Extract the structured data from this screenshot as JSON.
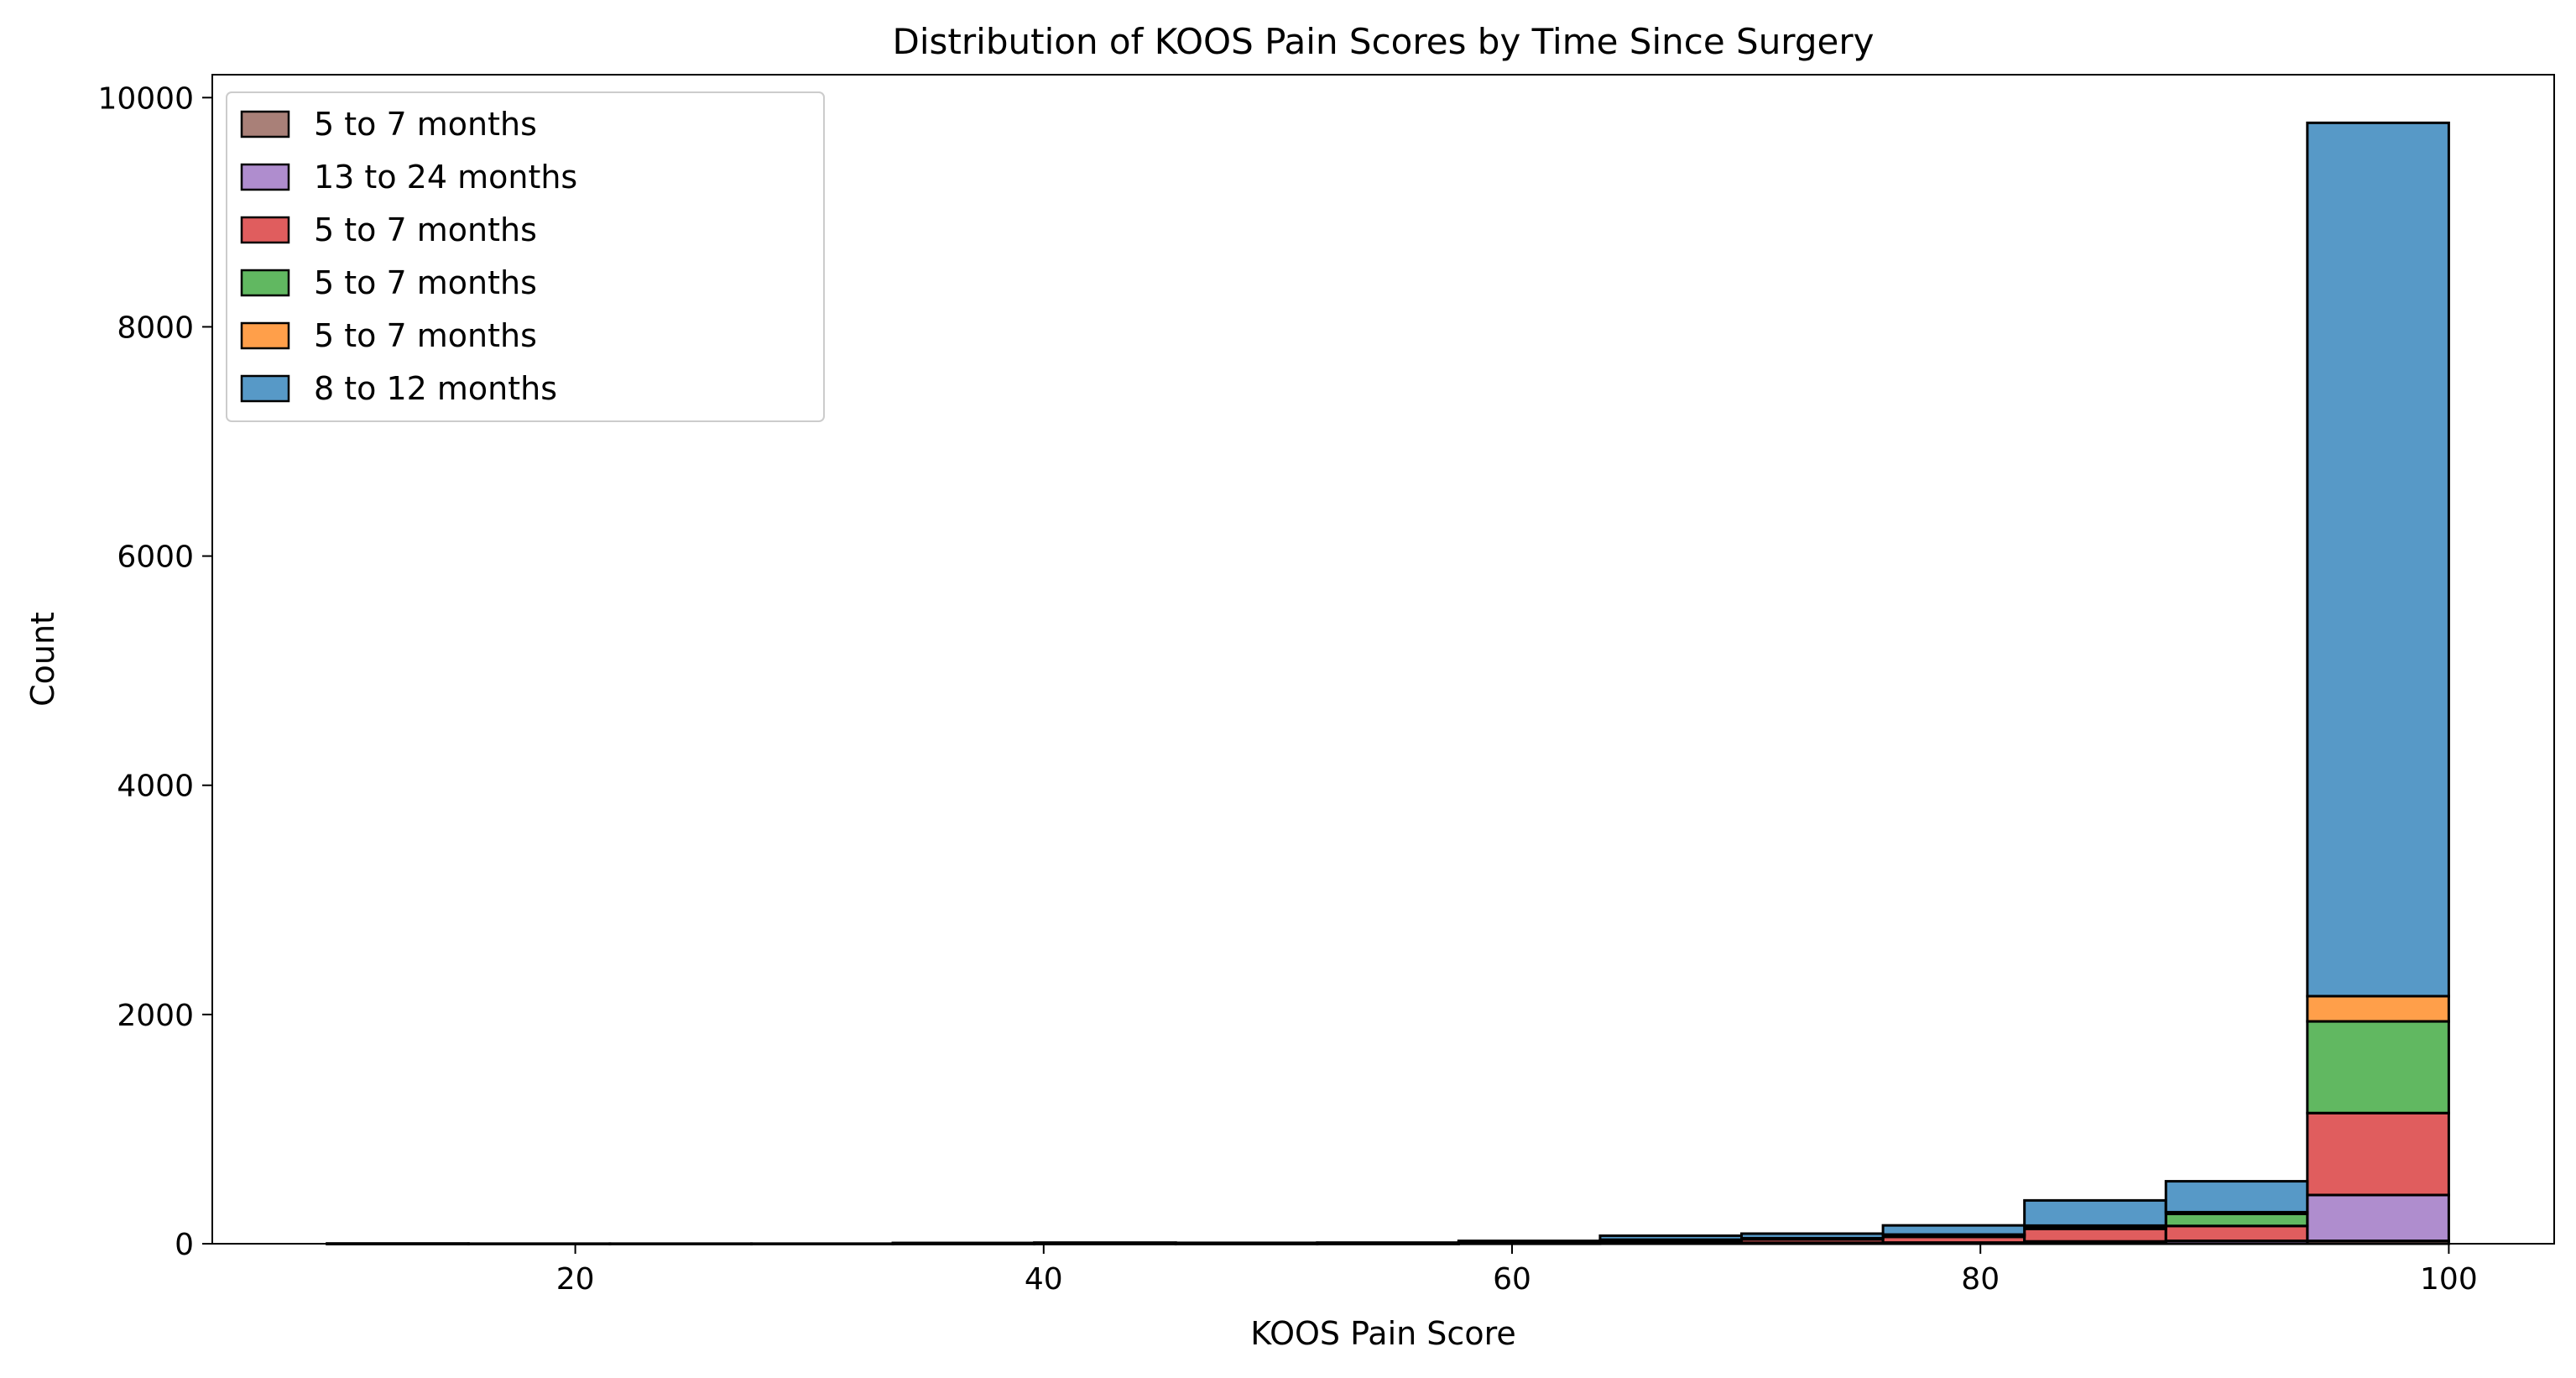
{
  "chart_data": {
    "type": "bar",
    "stacked": true,
    "title": "Distribution of KOOS Pain Scores by Time Since Surgery",
    "xlabel": "KOOS Pain Score",
    "ylabel": "Count",
    "xlim": [
      4.5,
      104.5
    ],
    "ylim": [
      0,
      10200
    ],
    "xticks": [
      20,
      40,
      60,
      80,
      100
    ],
    "yticks": [
      0,
      2000,
      4000,
      6000,
      8000,
      10000
    ],
    "grid": false,
    "legend_position": "top-left",
    "bin_edges": [
      9.4,
      15.44,
      21.48,
      27.52,
      33.56,
      39.6,
      45.64,
      51.68,
      57.72,
      63.76,
      69.8,
      75.84,
      81.88,
      87.92,
      93.96,
      100
    ],
    "series": [
      {
        "name": "5 to 7 months",
        "color": "#8c564b",
        "values": [
          0,
          0,
          0,
          0,
          0,
          0,
          0,
          0,
          0,
          0,
          0,
          0,
          0,
          0,
          25
        ]
      },
      {
        "name": "13 to 24 months",
        "color": "#9467bd",
        "values": [
          0,
          0,
          0,
          0,
          1,
          1,
          1,
          1,
          3,
          5,
          8,
          10,
          20,
          25,
          400
        ]
      },
      {
        "name": "5 to 7 months",
        "color": "#d62728",
        "values": [
          1,
          0,
          0,
          0,
          2,
          3,
          2,
          3,
          8,
          20,
          30,
          50,
          110,
          130,
          715
        ]
      },
      {
        "name": "5 to 7 months",
        "color": "#2ca02c",
        "values": [
          0,
          0,
          0,
          0,
          1,
          1,
          1,
          1,
          3,
          8,
          8,
          15,
          20,
          105,
          800
        ]
      },
      {
        "name": "5 to 7 months",
        "color": "#ff7f0e",
        "values": [
          0,
          0,
          0,
          0,
          0,
          0,
          0,
          0,
          1,
          2,
          2,
          5,
          8,
          15,
          220
        ]
      },
      {
        "name": "8 to 12 months",
        "color": "#1f77b4",
        "values": [
          1,
          1,
          1,
          1,
          3,
          5,
          4,
          5,
          10,
          35,
          40,
          80,
          220,
          270,
          7620
        ]
      }
    ]
  }
}
